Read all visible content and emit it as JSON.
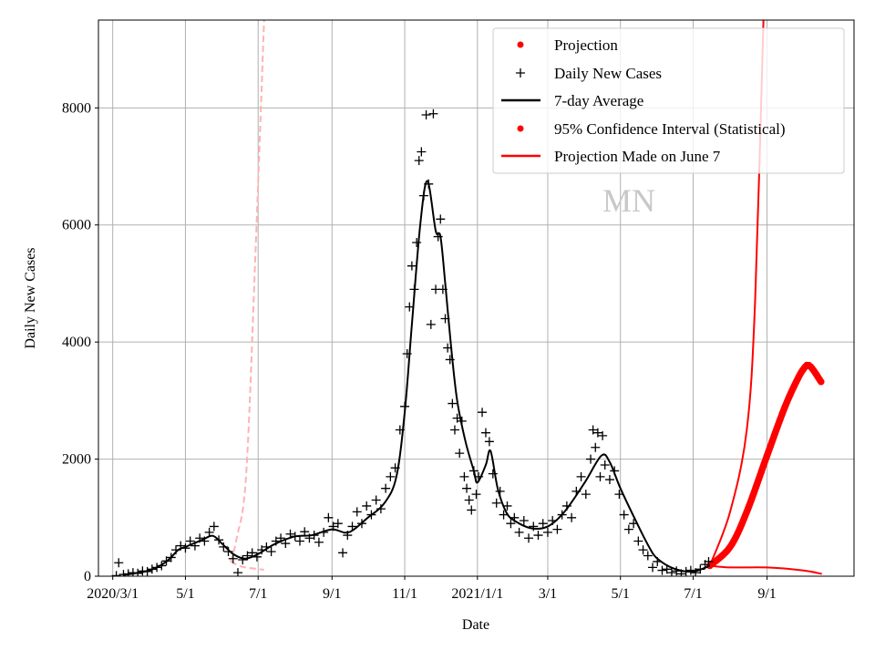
{
  "chart_data": {
    "type": "line",
    "title": "",
    "xlabel": "Date",
    "ylabel": "Daily New Cases",
    "xlim": [
      "2020-02-18",
      "2021-11-13"
    ],
    "ylim": [
      0,
      9500
    ],
    "grid": true,
    "legend_placement": "upper-right",
    "x_ticks": [
      {
        "date": "2020-03-01",
        "label": "2020/3/1"
      },
      {
        "date": "2020-05-01",
        "label": "5/1"
      },
      {
        "date": "2020-07-01",
        "label": "7/1"
      },
      {
        "date": "2020-09-01",
        "label": "9/1"
      },
      {
        "date": "2020-11-01",
        "label": "11/1"
      },
      {
        "date": "2021-01-01",
        "label": "2021/1/1"
      },
      {
        "date": "2021-03-01",
        "label": "3/1"
      },
      {
        "date": "2021-05-01",
        "label": "5/1"
      },
      {
        "date": "2021-07-01",
        "label": "7/1"
      },
      {
        "date": "2021-09-01",
        "label": "9/1"
      }
    ],
    "y_ticks": [
      {
        "value": 0,
        "label": "0"
      },
      {
        "value": 2000,
        "label": "2000"
      },
      {
        "value": 4000,
        "label": "4000"
      },
      {
        "value": 6000,
        "label": "6000"
      },
      {
        "value": 8000,
        "label": "8000"
      }
    ],
    "annotation": "MN",
    "colors": {
      "cases": "#000000",
      "projection": "#ff0000",
      "old_projection": "#ffb3b3",
      "grid": "#b0b0b0"
    },
    "legend": [
      {
        "label": "Projection",
        "marker": "dot",
        "color": "#ff0000"
      },
      {
        "label": "Daily New Cases",
        "marker": "plus",
        "color": "#000000"
      },
      {
        "label": "7-day Average",
        "marker": "line",
        "color": "#000000"
      },
      {
        "label": "95% Confidence Interval (Statistical)",
        "marker": "dot",
        "color": "#ff0000"
      },
      {
        "label": "Projection Made on June 7",
        "marker": "line",
        "color": "#ff0000"
      }
    ],
    "series": [
      {
        "name": "Daily New Cases",
        "style": "plus",
        "points": [
          [
            "2020-03-04",
            10
          ],
          [
            "2020-03-06",
            230
          ],
          [
            "2020-03-10",
            30
          ],
          [
            "2020-03-14",
            40
          ],
          [
            "2020-03-18",
            60
          ],
          [
            "2020-03-22",
            50
          ],
          [
            "2020-03-26",
            90
          ],
          [
            "2020-03-30",
            80
          ],
          [
            "2020-04-03",
            120
          ],
          [
            "2020-04-07",
            150
          ],
          [
            "2020-04-11",
            180
          ],
          [
            "2020-04-15",
            260
          ],
          [
            "2020-04-19",
            320
          ],
          [
            "2020-04-23",
            450
          ],
          [
            "2020-04-27",
            520
          ],
          [
            "2020-05-01",
            480
          ],
          [
            "2020-05-05",
            600
          ],
          [
            "2020-05-09",
            520
          ],
          [
            "2020-05-13",
            650
          ],
          [
            "2020-05-17",
            600
          ],
          [
            "2020-05-21",
            750
          ],
          [
            "2020-05-25",
            850
          ],
          [
            "2020-05-29",
            620
          ],
          [
            "2020-06-02",
            500
          ],
          [
            "2020-06-06",
            420
          ],
          [
            "2020-06-10",
            300
          ],
          [
            "2020-06-14",
            60
          ],
          [
            "2020-06-18",
            280
          ],
          [
            "2020-06-22",
            350
          ],
          [
            "2020-06-26",
            400
          ],
          [
            "2020-06-30",
            330
          ],
          [
            "2020-07-04",
            450
          ],
          [
            "2020-07-08",
            500
          ],
          [
            "2020-07-12",
            420
          ],
          [
            "2020-07-16",
            600
          ],
          [
            "2020-07-20",
            650
          ],
          [
            "2020-07-24",
            560
          ],
          [
            "2020-07-28",
            720
          ],
          [
            "2020-08-01",
            680
          ],
          [
            "2020-08-05",
            600
          ],
          [
            "2020-08-09",
            760
          ],
          [
            "2020-08-13",
            650
          ],
          [
            "2020-08-17",
            700
          ],
          [
            "2020-08-21",
            580
          ],
          [
            "2020-08-25",
            750
          ],
          [
            "2020-08-29",
            1000
          ],
          [
            "2020-09-02",
            850
          ],
          [
            "2020-09-06",
            900
          ],
          [
            "2020-09-10",
            400
          ],
          [
            "2020-09-14",
            700
          ],
          [
            "2020-09-18",
            850
          ],
          [
            "2020-09-22",
            1100
          ],
          [
            "2020-09-26",
            900
          ],
          [
            "2020-09-30",
            1200
          ],
          [
            "2020-10-04",
            1050
          ],
          [
            "2020-10-08",
            1300
          ],
          [
            "2020-10-12",
            1150
          ],
          [
            "2020-10-16",
            1500
          ],
          [
            "2020-10-20",
            1700
          ],
          [
            "2020-10-24",
            1850
          ],
          [
            "2020-10-28",
            2500
          ],
          [
            "2020-11-01",
            2900
          ],
          [
            "2020-11-03",
            3800
          ],
          [
            "2020-11-05",
            4600
          ],
          [
            "2020-11-07",
            5300
          ],
          [
            "2020-11-09",
            4900
          ],
          [
            "2020-11-11",
            5700
          ],
          [
            "2020-11-13",
            7100
          ],
          [
            "2020-11-15",
            7250
          ],
          [
            "2020-11-17",
            6500
          ],
          [
            "2020-11-19",
            7880
          ],
          [
            "2020-11-21",
            6700
          ],
          [
            "2020-11-23",
            4300
          ],
          [
            "2020-11-25",
            7900
          ],
          [
            "2020-11-27",
            4900
          ],
          [
            "2020-11-29",
            5800
          ],
          [
            "2020-12-01",
            6100
          ],
          [
            "2020-12-03",
            4900
          ],
          [
            "2020-12-05",
            4400
          ],
          [
            "2020-12-07",
            3900
          ],
          [
            "2020-12-09",
            3700
          ],
          [
            "2020-12-11",
            2950
          ],
          [
            "2020-12-13",
            2500
          ],
          [
            "2020-12-15",
            2700
          ],
          [
            "2020-12-17",
            2100
          ],
          [
            "2020-12-19",
            2650
          ],
          [
            "2020-12-21",
            1700
          ],
          [
            "2020-12-23",
            1500
          ],
          [
            "2020-12-25",
            1300
          ],
          [
            "2020-12-27",
            1130
          ],
          [
            "2020-12-29",
            1800
          ],
          [
            "2020-12-31",
            1400
          ],
          [
            "2021-01-02",
            1700
          ],
          [
            "2021-01-05",
            2800
          ],
          [
            "2021-01-08",
            2450
          ],
          [
            "2021-01-11",
            2300
          ],
          [
            "2021-01-14",
            1750
          ],
          [
            "2021-01-17",
            1250
          ],
          [
            "2021-01-20",
            1450
          ],
          [
            "2021-01-23",
            1050
          ],
          [
            "2021-01-26",
            1200
          ],
          [
            "2021-01-29",
            900
          ],
          [
            "2021-02-01",
            1000
          ],
          [
            "2021-02-05",
            750
          ],
          [
            "2021-02-09",
            950
          ],
          [
            "2021-02-13",
            650
          ],
          [
            "2021-02-17",
            850
          ],
          [
            "2021-02-21",
            700
          ],
          [
            "2021-02-25",
            900
          ],
          [
            "2021-03-01",
            750
          ],
          [
            "2021-03-05",
            950
          ],
          [
            "2021-03-09",
            800
          ],
          [
            "2021-03-13",
            1050
          ],
          [
            "2021-03-17",
            1200
          ],
          [
            "2021-03-21",
            1000
          ],
          [
            "2021-03-25",
            1450
          ],
          [
            "2021-03-29",
            1700
          ],
          [
            "2021-04-02",
            1400
          ],
          [
            "2021-04-06",
            2000
          ],
          [
            "2021-04-08",
            2500
          ],
          [
            "2021-04-10",
            2200
          ],
          [
            "2021-04-12",
            2450
          ],
          [
            "2021-04-14",
            1700
          ],
          [
            "2021-04-16",
            2400
          ],
          [
            "2021-04-18",
            1900
          ],
          [
            "2021-04-22",
            1650
          ],
          [
            "2021-04-26",
            1800
          ],
          [
            "2021-04-30",
            1400
          ],
          [
            "2021-05-04",
            1050
          ],
          [
            "2021-05-08",
            800
          ],
          [
            "2021-05-12",
            900
          ],
          [
            "2021-05-16",
            600
          ],
          [
            "2021-05-20",
            450
          ],
          [
            "2021-05-24",
            350
          ],
          [
            "2021-05-28",
            150
          ],
          [
            "2021-06-01",
            250
          ],
          [
            "2021-06-05",
            100
          ],
          [
            "2021-06-09",
            120
          ],
          [
            "2021-06-13",
            60
          ],
          [
            "2021-06-17",
            90
          ],
          [
            "2021-06-21",
            40
          ],
          [
            "2021-06-25",
            80
          ],
          [
            "2021-06-29",
            100
          ],
          [
            "2021-07-03",
            60
          ],
          [
            "2021-07-07",
            120
          ],
          [
            "2021-07-11",
            200
          ],
          [
            "2021-07-14",
            250
          ]
        ]
      },
      {
        "name": "7-day Average",
        "style": "line",
        "points": [
          [
            "2020-03-10",
            20
          ],
          [
            "2020-04-01",
            100
          ],
          [
            "2020-04-15",
            250
          ],
          [
            "2020-04-25",
            450
          ],
          [
            "2020-05-01",
            500
          ],
          [
            "2020-05-15",
            620
          ],
          [
            "2020-05-24",
            690
          ],
          [
            "2020-06-01",
            550
          ],
          [
            "2020-06-10",
            380
          ],
          [
            "2020-06-20",
            300
          ],
          [
            "2020-07-01",
            380
          ],
          [
            "2020-07-15",
            550
          ],
          [
            "2020-08-01",
            680
          ],
          [
            "2020-08-15",
            700
          ],
          [
            "2020-09-01",
            800
          ],
          [
            "2020-09-15",
            750
          ],
          [
            "2020-10-01",
            1000
          ],
          [
            "2020-10-15",
            1250
          ],
          [
            "2020-10-25",
            1700
          ],
          [
            "2020-11-01",
            2800
          ],
          [
            "2020-11-07",
            4300
          ],
          [
            "2020-11-14",
            6000
          ],
          [
            "2020-11-20",
            6750
          ],
          [
            "2020-11-27",
            5900
          ],
          [
            "2020-12-01",
            5800
          ],
          [
            "2020-12-05",
            5000
          ],
          [
            "2020-12-10",
            3900
          ],
          [
            "2020-12-15",
            3000
          ],
          [
            "2020-12-22",
            2300
          ],
          [
            "2020-12-29",
            1800
          ],
          [
            "2021-01-01",
            1600
          ],
          [
            "2021-01-08",
            1900
          ],
          [
            "2021-01-12",
            2140
          ],
          [
            "2021-01-18",
            1500
          ],
          [
            "2021-01-25",
            1100
          ],
          [
            "2021-02-01",
            950
          ],
          [
            "2021-02-15",
            820
          ],
          [
            "2021-03-01",
            850
          ],
          [
            "2021-03-15",
            1100
          ],
          [
            "2021-04-01",
            1600
          ],
          [
            "2021-04-15",
            2060
          ],
          [
            "2021-04-22",
            1950
          ],
          [
            "2021-05-01",
            1500
          ],
          [
            "2021-05-15",
            900
          ],
          [
            "2021-05-25",
            500
          ],
          [
            "2021-06-01",
            300
          ],
          [
            "2021-06-15",
            130
          ],
          [
            "2021-07-01",
            80
          ],
          [
            "2021-07-15",
            180
          ]
        ]
      },
      {
        "name": "Projection",
        "style": "dots",
        "points": [
          [
            "2021-07-15",
            180
          ],
          [
            "2021-08-01",
            500
          ],
          [
            "2021-08-15",
            1100
          ],
          [
            "2021-09-01",
            2060
          ],
          [
            "2021-09-15",
            2840
          ],
          [
            "2021-09-25",
            3300
          ],
          [
            "2021-10-02",
            3550
          ],
          [
            "2021-10-07",
            3590
          ],
          [
            "2021-10-17",
            3300
          ]
        ]
      },
      {
        "name": "95% Confidence Interval (Statistical)",
        "style": "line",
        "points": [
          [
            "2021-07-15",
            180
          ],
          [
            "2021-08-01",
            1100
          ],
          [
            "2021-08-15",
            2500
          ],
          [
            "2021-08-22",
            4700
          ],
          [
            "2021-08-29",
            9500
          ]
        ]
      },
      {
        "name": "95% Confidence Interval (Statistical)",
        "style": "line",
        "points": [
          [
            "2021-07-15",
            180
          ],
          [
            "2021-08-01",
            150
          ],
          [
            "2021-09-01",
            150
          ],
          [
            "2021-10-01",
            100
          ],
          [
            "2021-10-17",
            40
          ]
        ]
      },
      {
        "name": "Projection Made on June 7",
        "style": "dashed",
        "points": [
          [
            "2020-06-08",
            250
          ],
          [
            "2020-06-13",
            650
          ],
          [
            "2020-06-21",
            1750
          ],
          [
            "2020-06-29",
            5650
          ],
          [
            "2020-07-06",
            9500
          ]
        ]
      },
      {
        "name": "Projection Made on June 7",
        "style": "dashed",
        "points": [
          [
            "2020-06-08",
            250
          ],
          [
            "2020-06-18",
            160
          ],
          [
            "2020-07-06",
            110
          ]
        ]
      }
    ]
  }
}
